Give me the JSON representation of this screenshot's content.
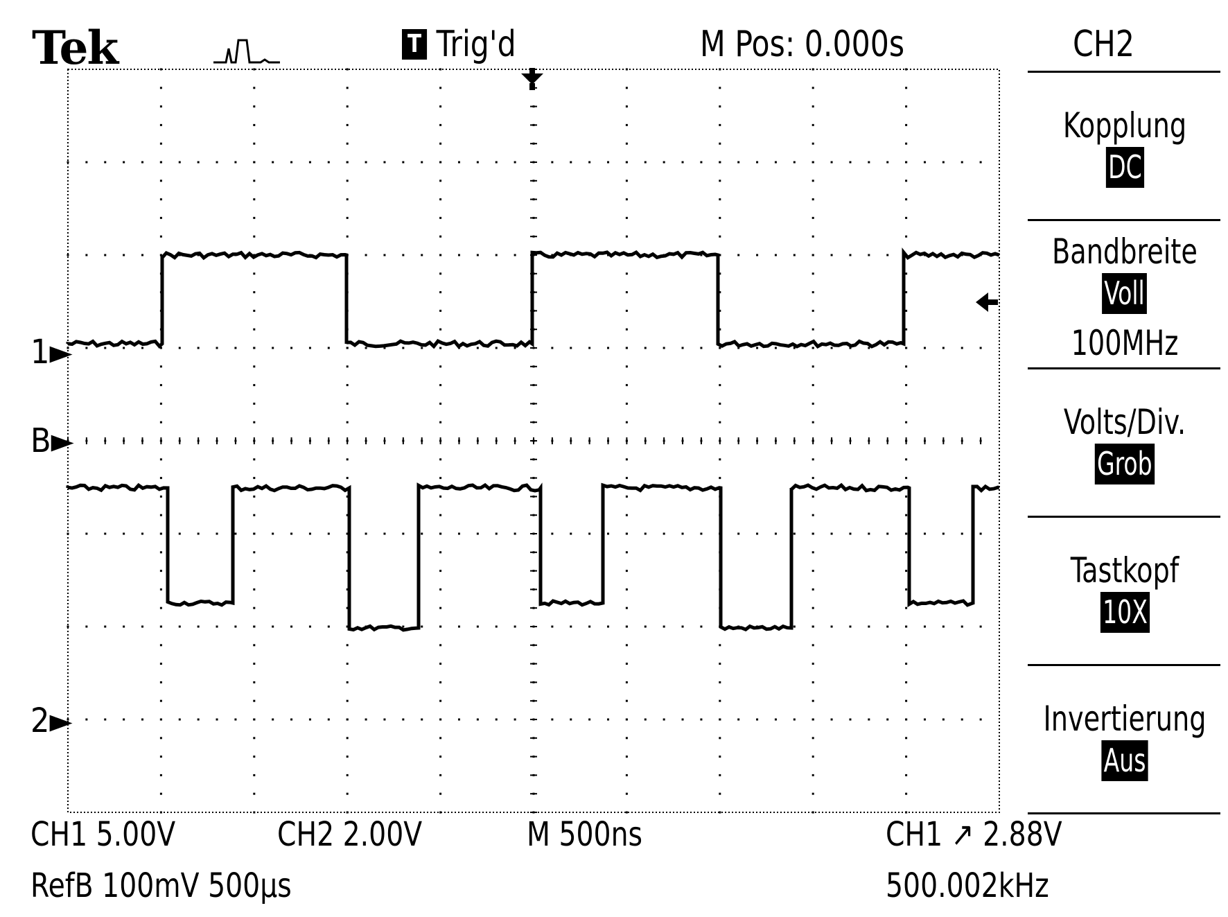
{
  "header": {
    "brand": "Tek",
    "acquire_icon": "pulse-waveform-icon",
    "trigger_badge": "T",
    "trigger_status": "Trig'd",
    "main_position": "M Pos: 0.000s",
    "menu_title": "CH2"
  },
  "side_menu": [
    {
      "title": "Kopplung",
      "value": "DC"
    },
    {
      "title": "Bandbreite",
      "value": "Voll",
      "sub": "100MHz"
    },
    {
      "title": "Volts/Div.",
      "value": "Grob"
    },
    {
      "title": "Tastkopf",
      "value": "10X"
    },
    {
      "title": "Invertierung",
      "value": "Aus"
    }
  ],
  "markers": {
    "ch1": "1",
    "ref": "B",
    "ch2": "2"
  },
  "footer": {
    "ch1_scale": "CH1  5.00V",
    "ch2_scale": "CH2  2.00V",
    "timebase": "M 500ns",
    "trigger": "CH1 ↗ 2.88V",
    "ref": "RefB 100mV 500µs",
    "frequency": "500.002kHz"
  },
  "colors": {
    "trace": "#000000",
    "background": "#ffffff",
    "highlight": "#000000"
  }
}
